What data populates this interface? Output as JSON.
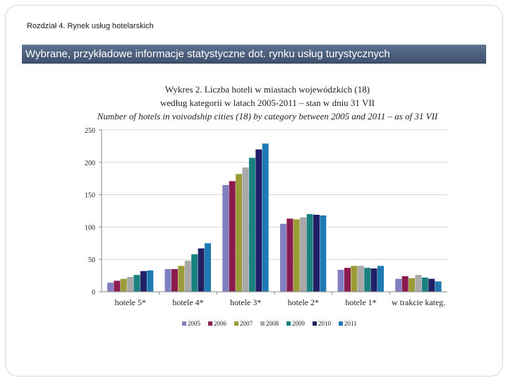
{
  "header": {
    "chapter": "Rozdział 4. Rynek usług hotelarskich",
    "banner": "Wybrane, przykładowe informacje statystyczne dot. rynku usług turystycznych"
  },
  "chart_data": {
    "type": "bar",
    "title": "Wykres 2. Liczba hoteli w miastach wojewódzkich (18)",
    "subtitle": "według kategorii w latach 2005-2011 – stan w dniu 31 VII",
    "subtitle_en": "Number of hotels in voivodship cities (18) by category between 2005 and 2011 – as of 31 VII",
    "xlabel": "",
    "ylabel": "",
    "ylim": [
      0,
      250
    ],
    "yticks": [
      0,
      50,
      100,
      150,
      200,
      250
    ],
    "grid": true,
    "legend_position": "bottom",
    "categories": [
      "hotele 5*",
      "hotele 4*",
      "hotele 3*",
      "hotele 2*",
      "hotele 1*",
      "w trakcie kateg."
    ],
    "series": [
      {
        "name": "2005",
        "color": "#8080c0",
        "values": [
          14,
          35,
          165,
          105,
          34,
          20
        ]
      },
      {
        "name": "2006",
        "color": "#8b1a4f",
        "values": [
          17,
          35,
          171,
          113,
          37,
          24
        ]
      },
      {
        "name": "2007",
        "color": "#9b9b3a",
        "values": [
          20,
          40,
          182,
          112,
          40,
          21
        ]
      },
      {
        "name": "2008",
        "color": "#a8a8a8",
        "values": [
          23,
          48,
          192,
          115,
          40,
          26
        ]
      },
      {
        "name": "2009",
        "color": "#1a8080",
        "values": [
          26,
          58,
          207,
          120,
          37,
          22
        ]
      },
      {
        "name": "2010",
        "color": "#202066",
        "values": [
          32,
          67,
          220,
          119,
          36,
          20
        ]
      },
      {
        "name": "2011",
        "color": "#1f7ab4",
        "values": [
          33,
          75,
          229,
          118,
          40,
          16
        ]
      }
    ]
  }
}
